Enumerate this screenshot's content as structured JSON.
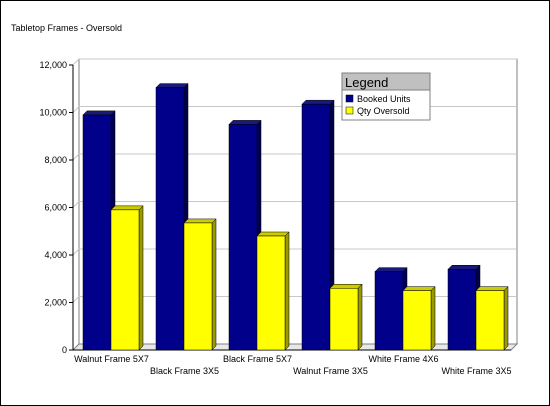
{
  "chart_data": {
    "type": "bar",
    "title": "Tabletop Frames - Oversold",
    "categories": [
      "Walnut Frame 5X7",
      "Black Frame 3X5",
      "Black Frame 5X7",
      "Walnut Frame 3X5",
      "White Frame 4X6",
      "White Frame 3X5"
    ],
    "series": [
      {
        "name": "Booked Units",
        "values": [
          9900,
          11050,
          9500,
          10350,
          3300,
          3400
        ]
      },
      {
        "name": "Qty Oversold",
        "values": [
          5900,
          5350,
          4800,
          2600,
          2500,
          2500
        ]
      }
    ],
    "ylim": [
      0,
      12000
    ],
    "yticks": [
      "0",
      "2,000",
      "4,000",
      "6,000",
      "8,000",
      "10,000",
      "12,000"
    ],
    "ytick_values": [
      0,
      2000,
      4000,
      6000,
      8000,
      10000,
      12000
    ],
    "grid": true,
    "legend": {
      "title": "Legend",
      "placement": "top-right"
    },
    "colors": {
      "series": [
        "#00008b",
        "#ffff00"
      ],
      "series_top": [
        "#1a1a7a",
        "#cccc00"
      ],
      "series_side": [
        "#000050",
        "#999900"
      ],
      "legend_header": "#c0c0c0",
      "grid": "#c8c8c8"
    }
  }
}
